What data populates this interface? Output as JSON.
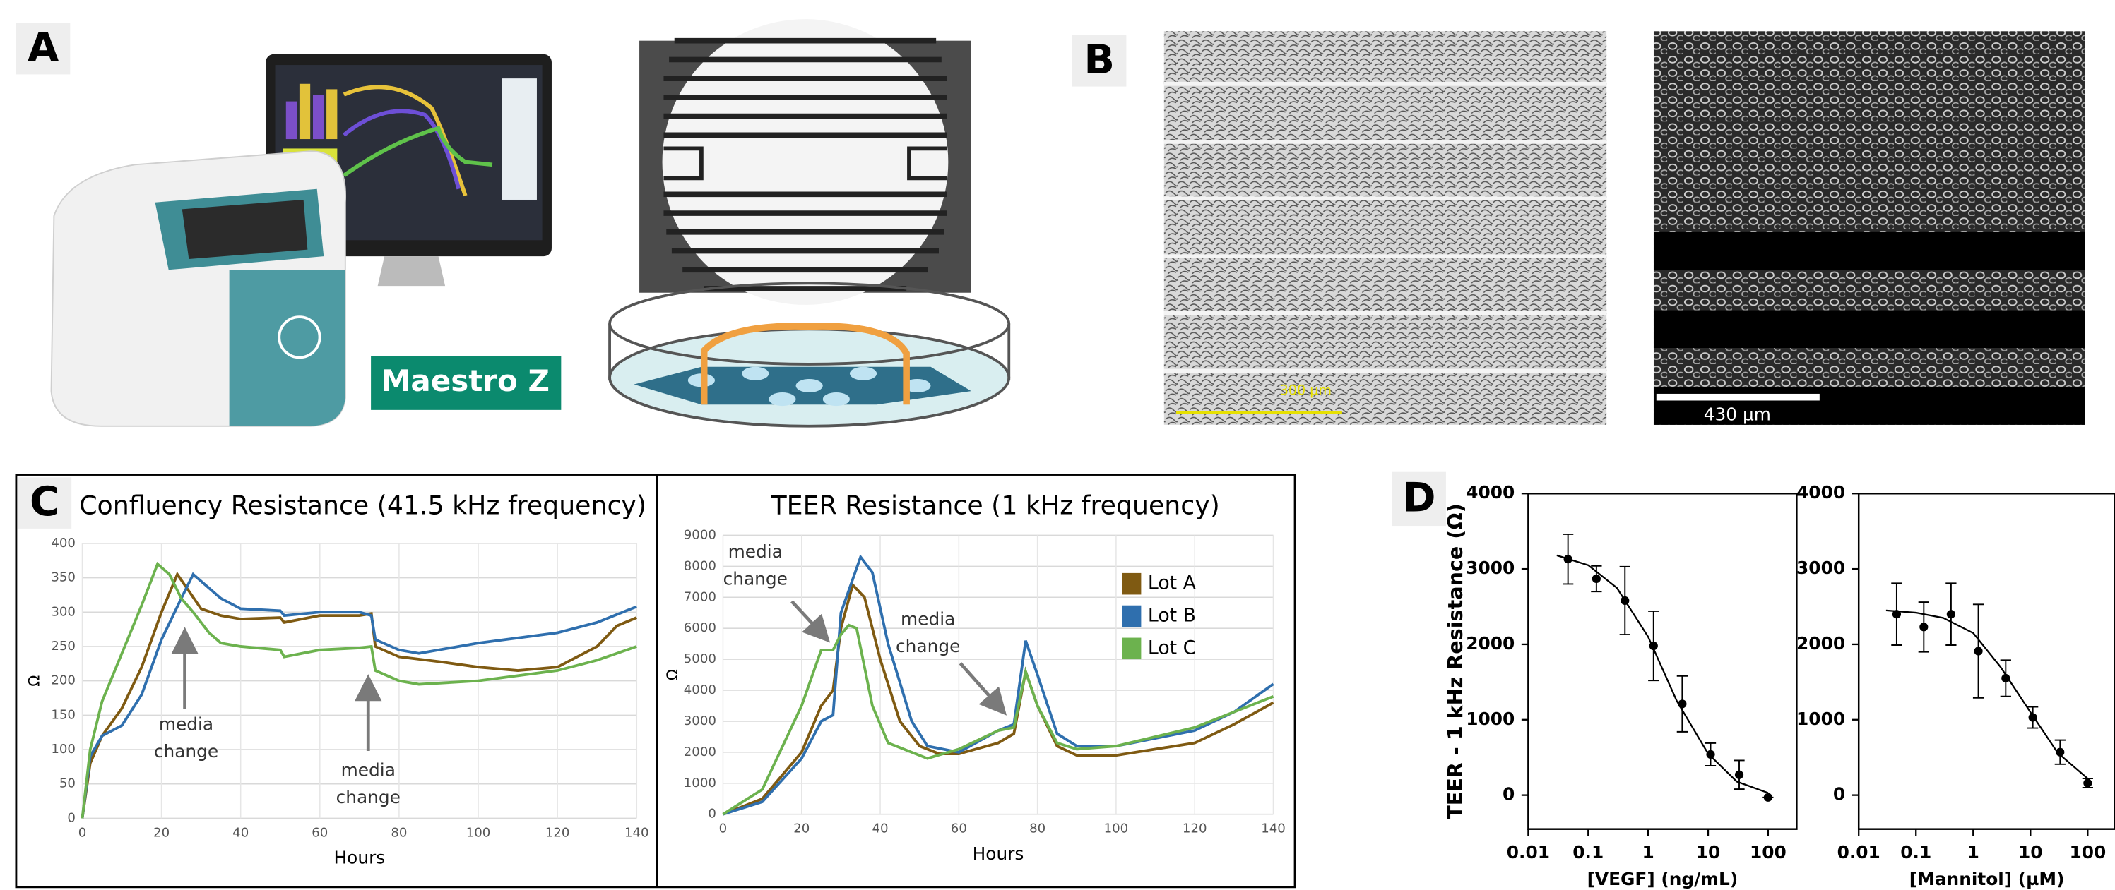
{
  "panel_labels": [
    "A",
    "B",
    "C",
    "D"
  ],
  "panel_a": {
    "device_label": "Maestro Z"
  },
  "panel_b": {
    "scale_bars": [
      "300 µm",
      "430 µm"
    ]
  },
  "chart_data": [
    {
      "type": "line",
      "title": "Confluency Resistance (41.5 kHz frequency)",
      "xlabel": "Hours",
      "ylabel": "Ω",
      "xlim": [
        0,
        140
      ],
      "xticks": [
        0,
        20,
        40,
        60,
        80,
        100,
        120,
        140
      ],
      "ylim": [
        0,
        400
      ],
      "yticks": [
        0,
        50,
        100,
        150,
        200,
        250,
        300,
        350,
        400
      ],
      "grid": true,
      "legend": false,
      "annotations": [
        [
          "media",
          "change"
        ],
        [
          "media",
          "change"
        ]
      ],
      "series": [
        {
          "name": "Lot A",
          "color": "#7f5a12",
          "x": [
            0,
            2,
            5,
            10,
            15,
            20,
            24,
            27,
            30,
            35,
            40,
            50,
            51,
            60,
            70,
            73,
            74,
            80,
            90,
            100,
            110,
            120,
            130,
            135,
            140
          ],
          "values": [
            0,
            80,
            120,
            160,
            220,
            300,
            355,
            330,
            305,
            295,
            290,
            292,
            285,
            295,
            295,
            298,
            250,
            235,
            228,
            220,
            215,
            220,
            250,
            280,
            292
          ]
        },
        {
          "name": "Lot B",
          "color": "#2f6fae",
          "x": [
            0,
            2,
            5,
            10,
            15,
            20,
            25,
            28,
            30,
            35,
            40,
            50,
            51,
            60,
            70,
            73,
            74,
            80,
            85,
            100,
            120,
            130,
            140
          ],
          "values": [
            0,
            90,
            120,
            135,
            180,
            260,
            320,
            355,
            345,
            320,
            305,
            302,
            295,
            300,
            300,
            295,
            260,
            245,
            240,
            255,
            270,
            285,
            308
          ]
        },
        {
          "name": "Lot C",
          "color": "#6cb24e",
          "x": [
            0,
            2,
            5,
            10,
            15,
            19,
            22,
            25,
            28,
            32,
            35,
            40,
            50,
            51,
            60,
            70,
            73,
            74,
            80,
            85,
            100,
            120,
            130,
            140
          ],
          "values": [
            0,
            100,
            170,
            240,
            310,
            370,
            355,
            320,
            300,
            270,
            255,
            250,
            245,
            235,
            245,
            248,
            250,
            215,
            200,
            195,
            200,
            215,
            230,
            250
          ]
        }
      ]
    },
    {
      "type": "line",
      "title": "TEER Resistance (1 kHz frequency)",
      "xlabel": "Hours",
      "ylabel": "Ω",
      "xlim": [
        0,
        140
      ],
      "xticks": [
        0,
        20,
        40,
        60,
        80,
        100,
        120,
        140
      ],
      "ylim": [
        0,
        9000
      ],
      "yticks": [
        0,
        1000,
        2000,
        3000,
        4000,
        5000,
        6000,
        7000,
        8000,
        9000
      ],
      "grid": true,
      "legend": "upper right",
      "annotations": [
        [
          "media",
          "change"
        ],
        [
          "media",
          "change"
        ]
      ],
      "series": [
        {
          "name": "Lot A",
          "color": "#7f5a12",
          "x": [
            0,
            10,
            20,
            25,
            28,
            30,
            33,
            36,
            40,
            45,
            50,
            55,
            60,
            70,
            74,
            77,
            80,
            85,
            90,
            100,
            120,
            130,
            140
          ],
          "values": [
            0,
            500,
            2000,
            3500,
            4000,
            6000,
            7400,
            7000,
            5000,
            3000,
            2200,
            1950,
            1950,
            2300,
            2600,
            4600,
            3500,
            2200,
            1900,
            1900,
            2300,
            2900,
            3600
          ]
        },
        {
          "name": "Lot B",
          "color": "#2f6fae",
          "x": [
            0,
            10,
            20,
            25,
            28,
            30,
            35,
            38,
            42,
            48,
            52,
            60,
            70,
            74,
            77,
            80,
            85,
            90,
            100,
            120,
            130,
            140
          ],
          "values": [
            0,
            400,
            1800,
            3000,
            3200,
            6500,
            8300,
            7800,
            5500,
            3000,
            2200,
            2000,
            2700,
            2900,
            5600,
            4500,
            2600,
            2200,
            2200,
            2700,
            3300,
            4200
          ]
        },
        {
          "name": "Lot C",
          "color": "#6cb24e",
          "x": [
            0,
            10,
            20,
            25,
            28,
            30,
            32,
            34,
            38,
            42,
            48,
            52,
            60,
            70,
            74,
            77,
            80,
            85,
            90,
            100,
            120,
            130,
            140
          ],
          "values": [
            0,
            800,
            3500,
            5300,
            5300,
            5800,
            6100,
            6000,
            3500,
            2300,
            2000,
            1800,
            2100,
            2700,
            2800,
            4600,
            3500,
            2300,
            2100,
            2200,
            2800,
            3300,
            3800
          ]
        }
      ]
    },
    {
      "type": "scatter",
      "xlabel": "[VEGF] (ng/mL)",
      "ylabel": "TEER - 1 kHz Resistance (Ω)",
      "xscale": "log",
      "xlim": [
        0.01,
        300
      ],
      "xticks": [
        0.01,
        0.1,
        1,
        10,
        100
      ],
      "ylim": [
        -450,
        4000
      ],
      "yticks": [
        0,
        1000,
        2000,
        3000,
        4000
      ],
      "color": "#000000",
      "x": [
        0.046,
        0.137,
        0.41,
        1.23,
        3.7,
        11,
        33,
        100
      ],
      "values": [
        3130,
        2870,
        2580,
        1980,
        1210,
        540,
        270,
        -30
      ],
      "errors": [
        330,
        170,
        450,
        460,
        370,
        150,
        190,
        0
      ],
      "fit_x": [
        0.03,
        0.1,
        0.3,
        1,
        3,
        10,
        30,
        100
      ],
      "fit_values": [
        3180,
        3050,
        2750,
        2100,
        1250,
        550,
        180,
        30
      ]
    },
    {
      "type": "scatter",
      "xlabel": "[Mannitol] (µM)",
      "xscale": "log",
      "xlim": [
        0.01,
        300
      ],
      "xticks": [
        0.01,
        0.1,
        1,
        10,
        100
      ],
      "ylim": [
        -450,
        4000
      ],
      "yticks": [
        0,
        1000,
        2000,
        3000,
        4000
      ],
      "color": "#000000",
      "x": [
        0.046,
        0.137,
        0.41,
        1.23,
        3.7,
        11,
        33,
        100
      ],
      "values": [
        2400,
        2230,
        2400,
        1910,
        1550,
        1030,
        570,
        160
      ],
      "errors": [
        410,
        330,
        410,
        620,
        240,
        140,
        160,
        60
      ],
      "fit_x": [
        0.03,
        0.1,
        0.3,
        1,
        3,
        10,
        30,
        100
      ],
      "fit_values": [
        2450,
        2420,
        2350,
        2150,
        1700,
        1100,
        560,
        220
      ]
    }
  ]
}
